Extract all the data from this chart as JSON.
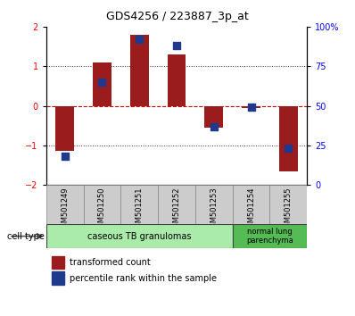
{
  "title": "GDS4256 / 223887_3p_at",
  "samples": [
    "GSM501249",
    "GSM501250",
    "GSM501251",
    "GSM501252",
    "GSM501253",
    "GSM501254",
    "GSM501255"
  ],
  "transformed_count": [
    -1.15,
    1.1,
    1.8,
    1.3,
    -0.55,
    -0.05,
    -1.65
  ],
  "percentile_rank": [
    18,
    65,
    92,
    88,
    37,
    49,
    23
  ],
  "ylim_left": [
    -2,
    2
  ],
  "ylim_right": [
    0,
    100
  ],
  "yticks_left": [
    -2,
    -1,
    0,
    1,
    2
  ],
  "yticks_right": [
    0,
    25,
    50,
    75,
    100
  ],
  "ytick_labels_right": [
    "0",
    "25",
    "50",
    "75",
    "100%"
  ],
  "bar_color": "#9B1C1C",
  "dot_color": "#1F3A8C",
  "hline_color": "#CC0000",
  "dotted_color": "#333333",
  "cell_type_groups": [
    {
      "label": "caseous TB granulomas",
      "n_samples": 5,
      "color": "#AAEAAA"
    },
    {
      "label": "normal lung\nparenchyma",
      "n_samples": 2,
      "color": "#55BB55"
    }
  ],
  "legend_bar_label": "transformed count",
  "legend_dot_label": "percentile rank within the sample",
  "cell_type_label": "cell type",
  "bar_width": 0.5,
  "dot_size": 35,
  "tick_fontsize": 7,
  "sample_fontsize": 6,
  "title_fontsize": 9
}
